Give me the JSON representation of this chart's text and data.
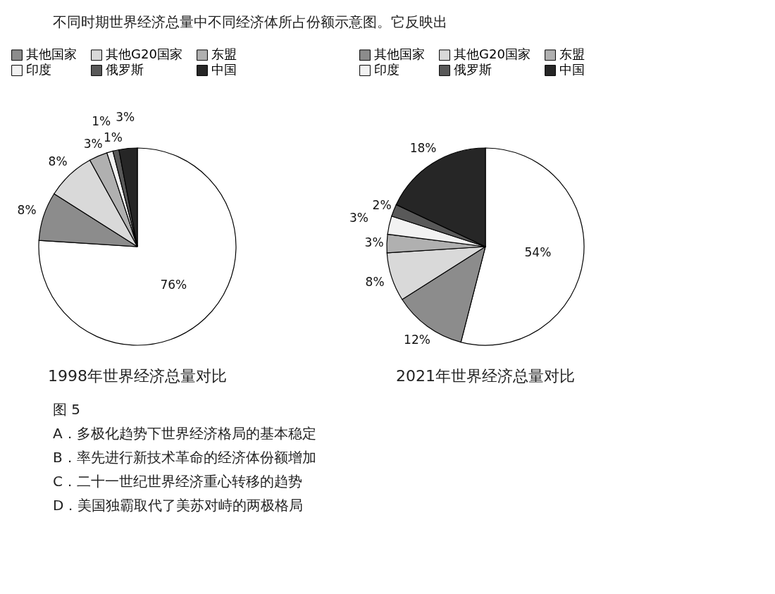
{
  "chart_data": [
    {
      "type": "other",
      "annotations": [
        "不同时期世界经济总量中不同经济体所占份额示意图。它反映出"
      ]
    },
    {
      "type": "pie",
      "title": "1998年世界经济总量对比",
      "legend": "top",
      "categories": [
        null,
        "其他国家",
        "其他G20国家",
        "东盟",
        "印度",
        "俄罗斯",
        "中国"
      ],
      "values": [
        76,
        8,
        8,
        3,
        1,
        1,
        3
      ],
      "value_labels": [
        "76%",
        "8%",
        "8%",
        "3%",
        "1%",
        "1%",
        "3%"
      ],
      "colors": [
        "#ffffff",
        "#8c8c8c",
        "#d9d9d9",
        "#b0b0b0",
        "#f2f2f2",
        "#595959",
        "#262626"
      ]
    },
    {
      "type": "pie",
      "title": "2021年世界经济总量对比",
      "legend": "top",
      "categories": [
        null,
        "其他国家",
        "其他G20国家",
        "东盟",
        "印度",
        "俄罗斯",
        "中国"
      ],
      "values": [
        54,
        12,
        8,
        3,
        3,
        2,
        18
      ],
      "value_labels": [
        "54%",
        "12%",
        "8%",
        "3%",
        "3%",
        "2%",
        "18%"
      ],
      "colors": [
        "#ffffff",
        "#8c8c8c",
        "#d9d9d9",
        "#b0b0b0",
        "#f2f2f2",
        "#595959",
        "#262626"
      ]
    },
    {
      "type": "other",
      "annotations": [
        "图 5",
        "A．多极化趋势下世界经济格局的基本稳定",
        "B．率先进行新技术革命的经济体份额增加",
        "C．二十一世纪世界经济重心转移的趋势",
        "D．美国独霸取代了美苏对峙的两极格局"
      ]
    }
  ]
}
